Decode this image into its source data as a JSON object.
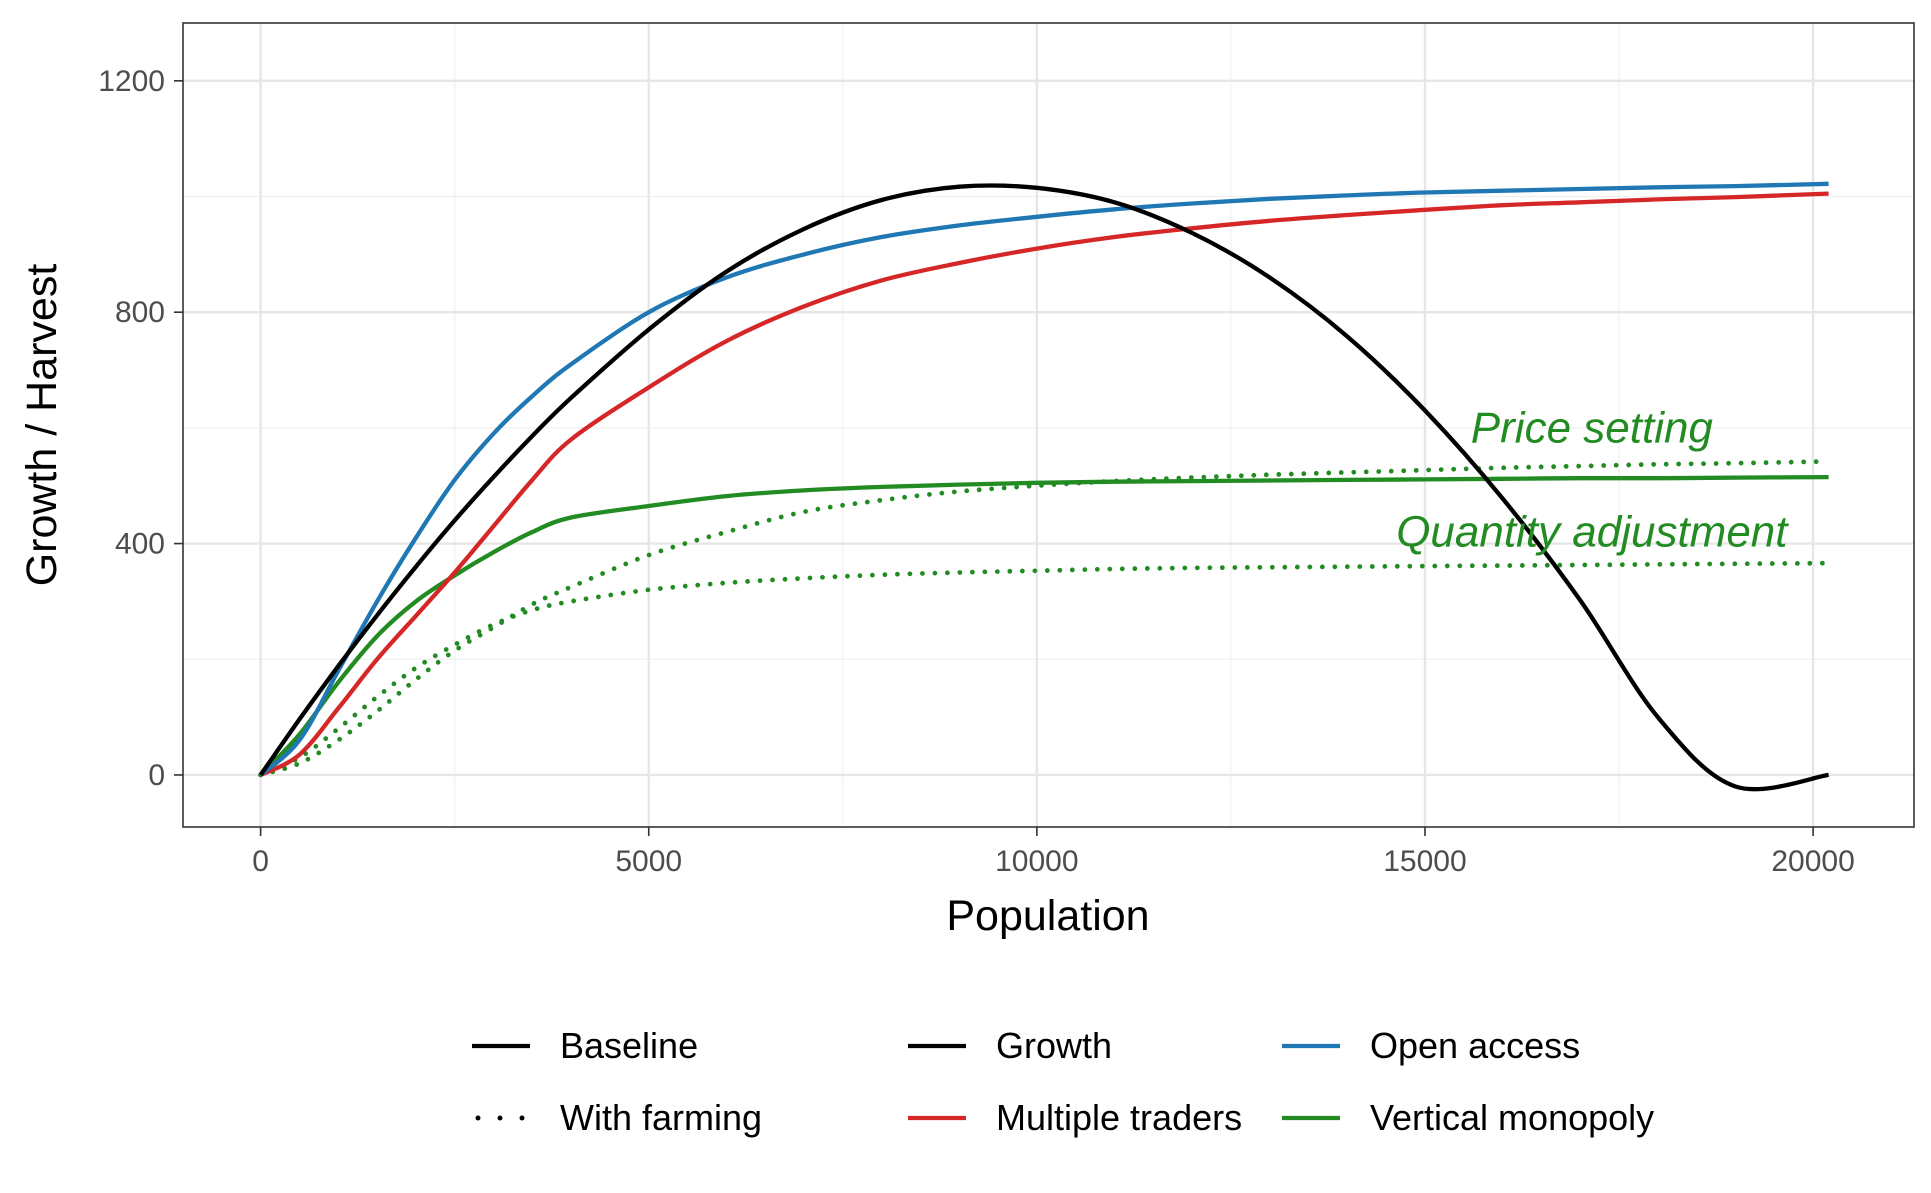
{
  "chart_data": {
    "type": "line",
    "title": "",
    "xlabel": "Population",
    "ylabel": "Growth / Harvest",
    "xlim": [
      -1000,
      21300
    ],
    "ylim": [
      -90,
      1300
    ],
    "x_ticks": [
      0,
      5000,
      10000,
      15000,
      20000
    ],
    "y_ticks": [
      0,
      400,
      800,
      1200
    ],
    "x_tick_labels": [
      "0",
      "5000",
      "10000",
      "15000",
      "20000"
    ],
    "y_tick_labels": [
      "0",
      "400",
      "800",
      "1200"
    ],
    "grid": true,
    "legend_position": "bottom",
    "x": [
      0,
      500,
      1000,
      1500,
      2000,
      2500,
      3000,
      3500,
      4000,
      5000,
      6000,
      7000,
      8000,
      9000,
      10000,
      11000,
      12000,
      13000,
      14000,
      15000,
      16000,
      17000,
      18000,
      19000,
      20200
    ],
    "series": [
      {
        "name": "Growth",
        "color": "#000000",
        "linetype": "solid",
        "values": [
          0,
          96,
          188,
          276,
          360,
          440,
          515,
          586,
          652,
          770,
          870,
          944,
          994,
          1017,
          1015,
          990,
          937,
          860,
          758,
          630,
          478,
          302,
          100,
          -20,
          0
        ]
      },
      {
        "name": "Open access",
        "color": "#1f77b4",
        "linetype": "solid",
        "values": [
          0,
          60,
          180,
          300,
          410,
          510,
          590,
          655,
          710,
          800,
          860,
          900,
          930,
          950,
          965,
          978,
          988,
          996,
          1002,
          1007,
          1010,
          1013,
          1016,
          1018,
          1022
        ]
      },
      {
        "name": "Multiple traders",
        "color": "#d62728",
        "linetype": "solid",
        "values": [
          0,
          35,
          115,
          200,
          275,
          350,
          430,
          510,
          580,
          670,
          750,
          810,
          855,
          885,
          910,
          930,
          945,
          958,
          968,
          977,
          985,
          990,
          995,
          999,
          1005
        ]
      },
      {
        "name": "Vertical monopoly",
        "color": "#228b22",
        "linetype": "solid",
        "values": [
          0,
          70,
          160,
          240,
          300,
          345,
          385,
          420,
          445,
          465,
          482,
          492,
          498,
          502,
          505,
          507,
          508,
          509,
          510,
          511,
          512,
          513,
          513,
          514,
          515
        ]
      },
      {
        "name": "Price setting",
        "color": "#228b22",
        "linetype": "dotted",
        "values": [
          0,
          20,
          60,
          110,
          165,
          215,
          255,
          295,
          325,
          380,
          420,
          455,
          475,
          490,
          500,
          508,
          514,
          519,
          523,
          527,
          531,
          534,
          537,
          539,
          542
        ]
      },
      {
        "name": "Quantity adjustment",
        "color": "#228b22",
        "linetype": "dotted",
        "values": [
          0,
          30,
          80,
          135,
          185,
          225,
          260,
          285,
          300,
          320,
          332,
          340,
          346,
          350,
          353,
          356,
          358,
          359,
          360,
          361,
          362,
          363,
          364,
          365,
          366
        ]
      }
    ],
    "annotations": [
      {
        "text": "Price setting",
        "x": 17150,
        "y": 575,
        "color": "#228b22"
      },
      {
        "text": "Quantity adjustment",
        "x": 17150,
        "y": 395,
        "color": "#228b22"
      }
    ],
    "legend": {
      "linetype": [
        {
          "label": "Baseline",
          "style": "solid"
        },
        {
          "label": "With farming",
          "style": "dotted"
        }
      ],
      "color": [
        {
          "label": "Growth",
          "color": "#000000"
        },
        {
          "label": "Multiple traders",
          "color": "#d62728"
        },
        {
          "label": "Open access",
          "color": "#1f77b4"
        },
        {
          "label": "Vertical monopoly",
          "color": "#228b22"
        }
      ]
    }
  }
}
